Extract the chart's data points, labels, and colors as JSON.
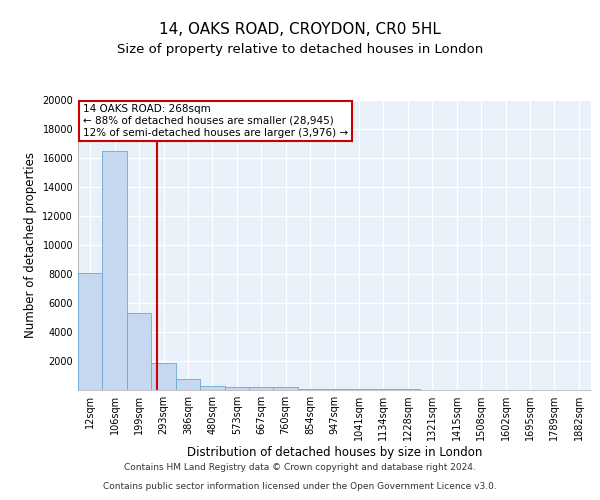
{
  "title1": "14, OAKS ROAD, CROYDON, CR0 5HL",
  "title2": "Size of property relative to detached houses in London",
  "xlabel": "Distribution of detached houses by size in London",
  "ylabel": "Number of detached properties",
  "bar_labels": [
    "12sqm",
    "106sqm",
    "199sqm",
    "293sqm",
    "386sqm",
    "480sqm",
    "573sqm",
    "667sqm",
    "760sqm",
    "854sqm",
    "947sqm",
    "1041sqm",
    "1134sqm",
    "1228sqm",
    "1321sqm",
    "1415sqm",
    "1508sqm",
    "1602sqm",
    "1695sqm",
    "1789sqm",
    "1882sqm"
  ],
  "bar_values": [
    8100,
    16500,
    5300,
    1850,
    750,
    300,
    220,
    200,
    200,
    100,
    80,
    60,
    50,
    40,
    30,
    20,
    15,
    10,
    8,
    5,
    3
  ],
  "bar_color": "#c5d8f0",
  "bar_edge_color": "#6aaad4",
  "background_color": "#e8f0fa",
  "grid_color": "#ffffff",
  "vline_x": 2.72,
  "vline_color": "#cc0000",
  "annotation_title": "14 OAKS ROAD: 268sqm",
  "annotation_line1": "← 88% of detached houses are smaller (28,945)",
  "annotation_line2": "12% of semi-detached houses are larger (3,976) →",
  "annotation_box_color": "#ffffff",
  "annotation_border_color": "#cc0000",
  "ylim": [
    0,
    20000
  ],
  "yticks": [
    0,
    2000,
    4000,
    6000,
    8000,
    10000,
    12000,
    14000,
    16000,
    18000,
    20000
  ],
  "footnote1": "Contains HM Land Registry data © Crown copyright and database right 2024.",
  "footnote2": "Contains public sector information licensed under the Open Government Licence v3.0.",
  "title1_fontsize": 11,
  "title2_fontsize": 9.5,
  "xlabel_fontsize": 8.5,
  "ylabel_fontsize": 8.5,
  "tick_fontsize": 7,
  "footnote_fontsize": 6.5,
  "ann_fontsize": 7.5
}
